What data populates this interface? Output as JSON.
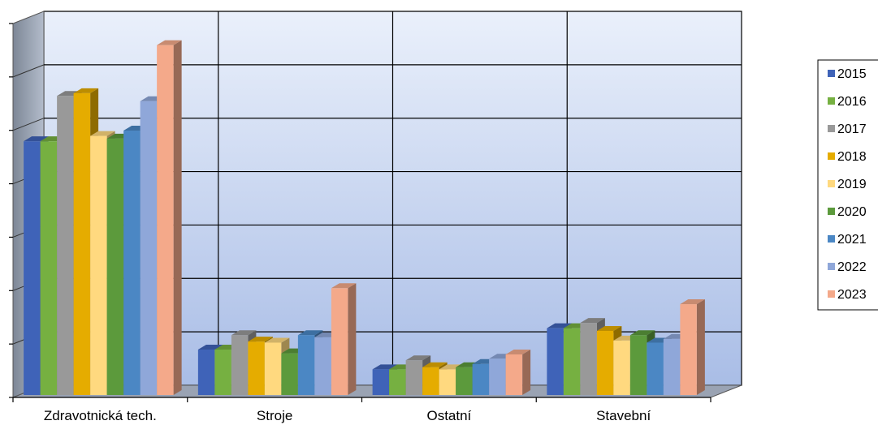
{
  "chart_data": {
    "type": "bar",
    "title": "",
    "xlabel": "",
    "ylabel": "",
    "ylim": [
      0,
      7
    ],
    "y_tick_labels_shown": false,
    "grid": true,
    "three_d": true,
    "legend_position": "right",
    "categories": [
      "Zdravotnická tech.",
      "Stroje",
      "Ostatní",
      "Stavební"
    ],
    "series": [
      {
        "name": "2015",
        "color": "#3f63b8",
        "values": [
          4.75,
          0.85,
          0.48,
          1.25
        ]
      },
      {
        "name": "2016",
        "color": "#76b041",
        "values": [
          4.75,
          0.85,
          0.48,
          1.25
        ]
      },
      {
        "name": "2017",
        "color": "#999999",
        "values": [
          5.6,
          1.12,
          0.65,
          1.35
        ]
      },
      {
        "name": "2018",
        "color": "#e5ac00",
        "values": [
          5.65,
          1.0,
          0.52,
          1.2
        ]
      },
      {
        "name": "2019",
        "color": "#ffd97f",
        "values": [
          4.85,
          0.98,
          0.48,
          1.02
        ]
      },
      {
        "name": "2020",
        "color": "#5c9a3c",
        "values": [
          4.8,
          0.78,
          0.52,
          1.12
        ]
      },
      {
        "name": "2021",
        "color": "#4b87c4",
        "values": [
          4.95,
          1.12,
          0.58,
          0.98
        ]
      },
      {
        "name": "2022",
        "color": "#8fa7d9",
        "values": [
          5.5,
          1.08,
          0.68,
          1.05
        ]
      },
      {
        "name": "2023",
        "color": "#f4a98a",
        "values": [
          6.55,
          2.0,
          0.76,
          1.7
        ]
      }
    ]
  }
}
